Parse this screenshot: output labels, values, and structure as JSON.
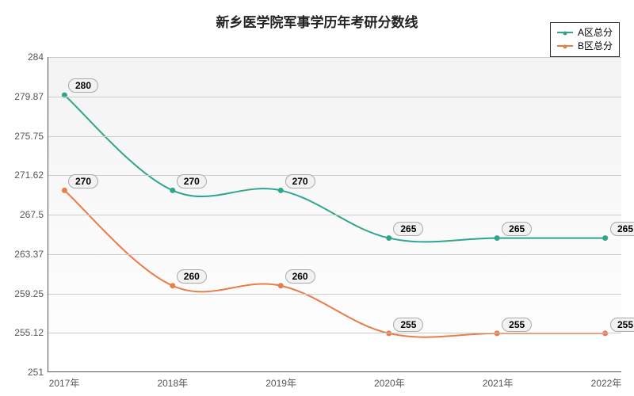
{
  "chart": {
    "type": "line",
    "title": "新乡医学院军事学历年考研分数线",
    "title_fontsize": 17,
    "title_color": "#222222",
    "background_color": "#ffffff",
    "plot_background_gradient": {
      "from": "#f3f3f3",
      "to": "#ffffff"
    },
    "grid_color": "#cccccc",
    "axis_color": "#555555",
    "tick_fontsize": 12,
    "tick_color": "#555555",
    "label_fontsize": 12,
    "label_fontweight": "bold",
    "label_bg": "#f2f2f2",
    "label_border": "#aaaaaa",
    "x": {
      "categories": [
        "2017年",
        "2018年",
        "2019年",
        "2020年",
        "2021年",
        "2022年"
      ]
    },
    "y": {
      "min": 251,
      "max": 284,
      "ticks": [
        251,
        255.12,
        259.25,
        263.37,
        267.5,
        271.62,
        275.75,
        279.87,
        284
      ]
    },
    "series": [
      {
        "name": "A区总分",
        "color": "#2fa58e",
        "line_width": 2,
        "marker": "circle",
        "marker_size": 5,
        "values": [
          280,
          270,
          270,
          265,
          265,
          265
        ]
      },
      {
        "name": "B区总分",
        "color": "#e87c4a",
        "line_width": 2,
        "marker": "circle",
        "marker_size": 5,
        "values": [
          270,
          260,
          260,
          255,
          255,
          255
        ]
      }
    ],
    "legend": {
      "position": "top-right",
      "border_color": "#333333",
      "fontsize": 12
    }
  }
}
